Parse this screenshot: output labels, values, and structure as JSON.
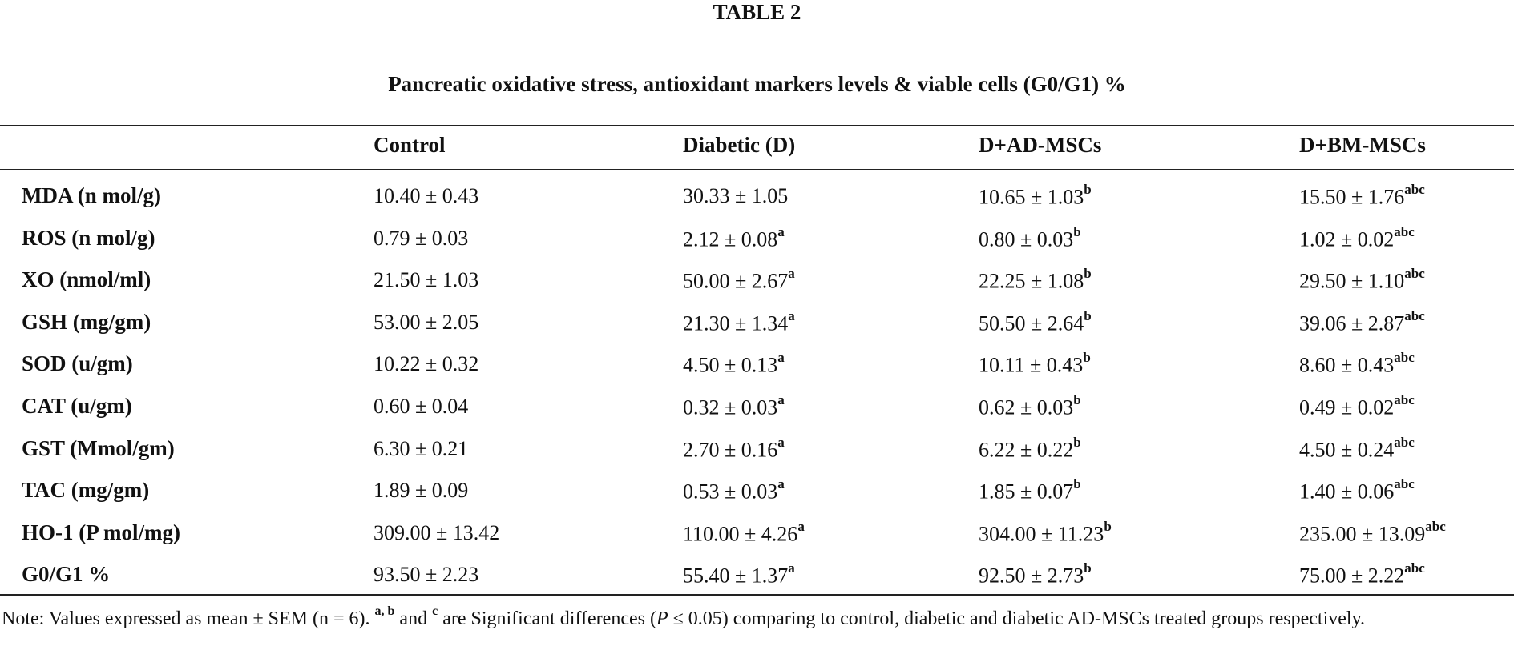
{
  "table": {
    "title": "TABLE 2",
    "subtitle": "Pancreatic oxidative stress, antioxidant markers levels & viable cells (G0/G1) %",
    "columns": [
      "Control",
      "Diabetic (D)",
      "D+AD-MSCs",
      "D+BM-MSCs"
    ],
    "rows": [
      {
        "label": "MDA (n mol/g)",
        "cells": [
          {
            "text": "10.40 ± 0.43"
          },
          {
            "text": "30.33 ± 1.05"
          },
          {
            "text": "10.65 ± 1.03",
            "sup": "b"
          },
          {
            "text": "15.50 ± 1.76",
            "sup": "abc"
          }
        ]
      },
      {
        "label": "ROS (n mol/g)",
        "cells": [
          {
            "text": "0.79 ± 0.03"
          },
          {
            "text": "2.12 ± 0.08",
            "sup": "a"
          },
          {
            "text": "0.80 ± 0.03",
            "sup": "b"
          },
          {
            "text": "1.02 ± 0.02",
            "sup": "abc"
          }
        ]
      },
      {
        "label": "XO (nmol/ml)",
        "cells": [
          {
            "text": "21.50 ± 1.03"
          },
          {
            "text": "50.00 ± 2.67",
            "sup": "a"
          },
          {
            "text": "22.25 ± 1.08",
            "sup": "b"
          },
          {
            "text": "29.50 ± 1.10",
            "sup": "abc"
          }
        ]
      },
      {
        "label": "GSH (mg/gm)",
        "cells": [
          {
            "text": "53.00 ± 2.05"
          },
          {
            "text": "21.30 ± 1.34",
            "sup": "a"
          },
          {
            "text": "50.50 ± 2.64",
            "sup": "b"
          },
          {
            "text": "39.06 ± 2.87",
            "sup": "abc"
          }
        ]
      },
      {
        "label": "SOD (u/gm)",
        "cells": [
          {
            "text": "10.22 ± 0.32"
          },
          {
            "text": "4.50 ± 0.13",
            "sup": "a"
          },
          {
            "text": "10.11 ± 0.43",
            "sup": "b"
          },
          {
            "text": "8.60 ± 0.43",
            "sup": "abc"
          }
        ]
      },
      {
        "label": "CAT (u/gm)",
        "cells": [
          {
            "text": "0.60 ± 0.04"
          },
          {
            "text": "0.32 ± 0.03",
            "sup": "a"
          },
          {
            "text": "0.62 ± 0.03",
            "sup": "b"
          },
          {
            "text": "0.49 ± 0.02",
            "sup": "abc"
          }
        ]
      },
      {
        "label": "GST (Mmol/gm)",
        "cells": [
          {
            "text": "6.30 ± 0.21"
          },
          {
            "text": "2.70 ± 0.16",
            "sup": "a"
          },
          {
            "text": "6.22 ± 0.22",
            "sup": "b"
          },
          {
            "text": "4.50 ± 0.24",
            "sup": "abc"
          }
        ]
      },
      {
        "label": "TAC (mg/gm)",
        "cells": [
          {
            "text": "1.89 ± 0.09"
          },
          {
            "text": "0.53 ± 0.03",
            "sup": "a"
          },
          {
            "text": "1.85 ± 0.07",
            "sup": "b"
          },
          {
            "text": "1.40 ± 0.06",
            "sup": "abc"
          }
        ]
      },
      {
        "label": "HO-1 (P mol/mg)",
        "cells": [
          {
            "text": "309.00 ± 13.42"
          },
          {
            "text": "110.00 ± 4.26",
            "sup": "a"
          },
          {
            "text": "304.00 ± 11.23",
            "sup": "b"
          },
          {
            "text": "235.00 ± 13.09",
            "sup": "abc"
          }
        ]
      },
      {
        "label": "G0/G1 %",
        "cells": [
          {
            "text": "93.50 ± 2.23"
          },
          {
            "text": "55.40 ± 1.37",
            "sup": "a"
          },
          {
            "text": "92.50 ± 2.73",
            "sup": "b"
          },
          {
            "text": "75.00 ± 2.22",
            "sup": "abc"
          }
        ]
      }
    ],
    "note": [
      {
        "text": "Note: Values expressed as mean ± SEM (n = 6). "
      },
      {
        "text": "a, b",
        "style": "sup"
      },
      {
        "text": " and "
      },
      {
        "text": "c",
        "style": "sup"
      },
      {
        "text": " are Significant differences ("
      },
      {
        "text": "P",
        "style": "italic"
      },
      {
        "text": " ≤ 0.05) comparing to control, diabetic and diabetic AD-MSCs treated groups respectively."
      }
    ]
  }
}
